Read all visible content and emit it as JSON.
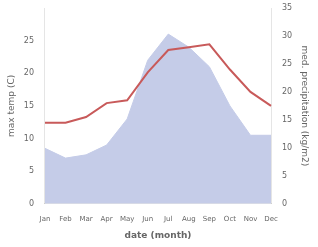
{
  "chart_data": {
    "type": "line",
    "categories": [
      "Jan",
      "Feb",
      "Mar",
      "Apr",
      "May",
      "Jun",
      "Jul",
      "Aug",
      "Sep",
      "Oct",
      "Nov",
      "Dec"
    ],
    "series": [
      {
        "type": "area",
        "color": "#c5cce8",
        "values": [
          8.5,
          7.0,
          7.5,
          9.0,
          13.0,
          22.0,
          26.0,
          24.0,
          21.0,
          15.0,
          10.5,
          10.5
        ]
      },
      {
        "type": "line",
        "color": "#c85a5a",
        "axis": "y2",
        "values": [
          14.5,
          14.5,
          15.5,
          18.0,
          18.5,
          23.5,
          27.5,
          28.0,
          28.5,
          24.0,
          20.0,
          17.5
        ]
      }
    ],
    "xlabel": "date (month)",
    "ylabel": "max temp (C)",
    "y2label": "med. precipitation (kg/m2)",
    "ylim": [
      0,
      30
    ],
    "yticks": [
      0,
      5,
      10,
      15,
      20,
      25
    ],
    "y2lim": [
      0,
      35
    ],
    "y2ticks": [
      0,
      5,
      10,
      15,
      20,
      25,
      30,
      35
    ],
    "grid": false
  }
}
